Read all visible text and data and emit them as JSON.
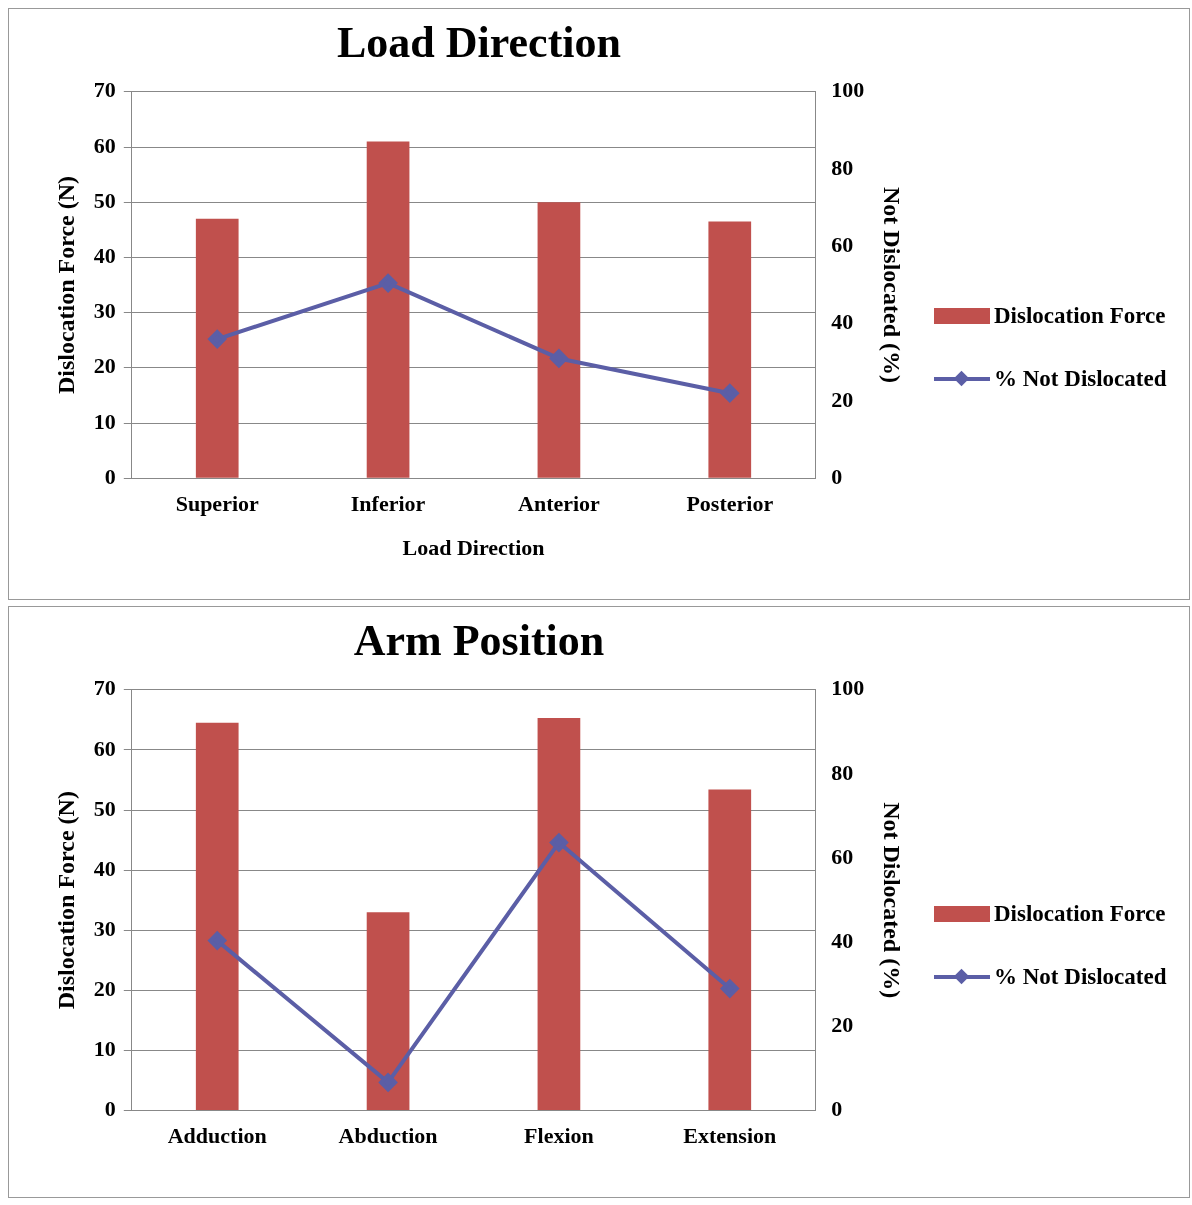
{
  "chart_data": [
    {
      "type": "bar",
      "title": "Load Direction",
      "xlabel": "Load Direction",
      "ylabel": "Dislocation Force (N)",
      "y2label": "Not Dislocated (%)",
      "categories": [
        "Superior",
        "Inferior",
        "Anterior",
        "Posterior"
      ],
      "series": [
        {
          "name": "Dislocation Force",
          "color": "#c0504d",
          "values": [
            47,
            61,
            50,
            46.5
          ]
        },
        {
          "name": "% Not Dislocated",
          "type": "line",
          "axis": "y2",
          "color": "#5b5ea6",
          "values": [
            36,
            50.5,
            31,
            22
          ]
        }
      ],
      "ylim": [
        0,
        70
      ],
      "yticks": [
        0,
        10,
        20,
        30,
        40,
        50,
        60,
        70
      ],
      "y2lim": [
        0,
        100
      ],
      "y2ticks": [
        0,
        20,
        40,
        60,
        80,
        100
      ],
      "grid": "y",
      "legend": "right",
      "marker": "diamond"
    },
    {
      "type": "bar",
      "title": "Arm Position",
      "ylabel": "Dislocation Force (N)",
      "y2label": "Not Dislocated (%)",
      "categories": [
        "Adduction",
        "Abduction",
        "Flexion",
        "Extension"
      ],
      "series": [
        {
          "name": "Dislocation Force",
          "color": "#c0504d",
          "values": [
            64.5,
            33,
            65.3,
            53.4
          ]
        },
        {
          "name": "% Not Dislocated",
          "type": "line",
          "axis": "y2",
          "color": "#5b5ea6",
          "values": [
            40.4,
            6.7,
            63.7,
            29
          ]
        }
      ],
      "ylim": [
        0,
        70
      ],
      "yticks": [
        0,
        10,
        20,
        30,
        40,
        50,
        60,
        70
      ],
      "y2lim": [
        0,
        100
      ],
      "y2ticks": [
        0,
        20,
        40,
        60,
        80,
        100
      ],
      "grid": "y",
      "legend": "right",
      "marker": "diamond"
    }
  ]
}
